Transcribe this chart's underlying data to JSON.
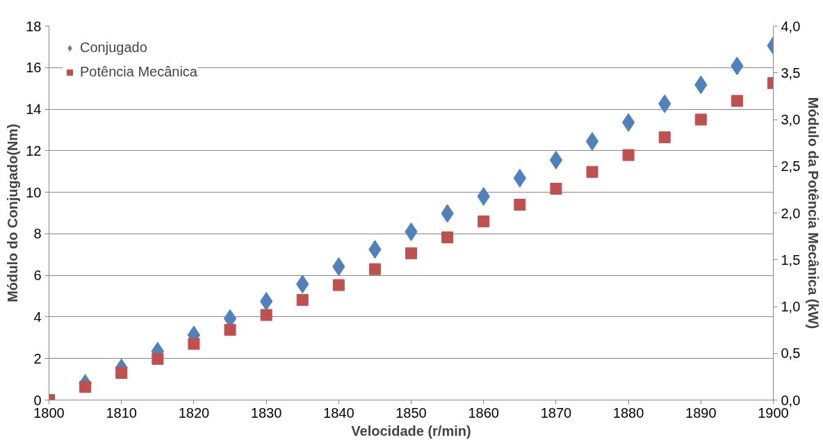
{
  "chart_data": {
    "type": "scatter",
    "xlabel": "Velocidade (r/min)",
    "ylabel": "Módulo do Conjugado(Nm)",
    "y2label": "Módulo da Potência Mecânica (kW)",
    "x": [
      1800,
      1805,
      1810,
      1815,
      1820,
      1825,
      1830,
      1835,
      1840,
      1845,
      1850,
      1855,
      1860,
      1865,
      1870,
      1875,
      1880,
      1885,
      1890,
      1895,
      1900
    ],
    "series": [
      {
        "name": "Conjugado",
        "color": "#4f81bd",
        "marker": "diamond",
        "values": [
          null,
          0.8,
          1.55,
          2.35,
          3.13,
          3.92,
          4.75,
          5.58,
          6.42,
          7.25,
          8.1,
          8.98,
          9.8,
          10.68,
          11.55,
          12.45,
          13.36,
          14.26,
          15.17,
          16.08,
          17.06
        ]
      },
      {
        "name": "Potência Mecânica",
        "color": "#c0504d",
        "marker": "square",
        "axis": "y2",
        "values": [
          0,
          0.14,
          0.29,
          0.44,
          0.6,
          0.75,
          0.91,
          1.07,
          1.23,
          1.4,
          1.57,
          1.74,
          1.91,
          2.09,
          2.26,
          2.44,
          2.62,
          2.81,
          3.0,
          3.2,
          3.39
        ]
      }
    ],
    "xlim": [
      1800,
      1900
    ],
    "xticks": [
      1800,
      1810,
      1820,
      1830,
      1840,
      1850,
      1860,
      1870,
      1880,
      1890,
      1900
    ],
    "ylim": [
      0,
      18
    ],
    "yticks": [
      0,
      2,
      4,
      6,
      8,
      10,
      12,
      14,
      16,
      18
    ],
    "y2lim": [
      0,
      4
    ],
    "y2ticks": [
      {
        "value": 0,
        "label": "0,0"
      },
      {
        "value": 0.5,
        "label": "0,5"
      },
      {
        "value": 1,
        "label": "1,0"
      },
      {
        "value": 1.5,
        "label": "1,5"
      },
      {
        "value": 2,
        "label": "2,0"
      },
      {
        "value": 2.5,
        "label": "2,5"
      },
      {
        "value": 3,
        "label": "3,0"
      },
      {
        "value": 3.5,
        "label": "3,5"
      },
      {
        "value": 4,
        "label": "4,0"
      }
    ],
    "grid": "y",
    "legend": "top left"
  }
}
